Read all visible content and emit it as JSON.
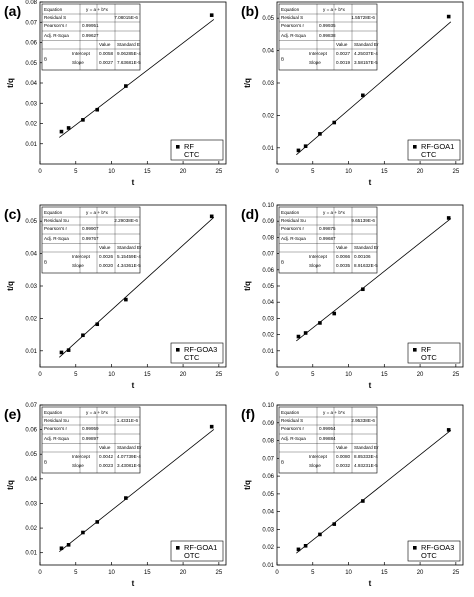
{
  "chart_data": [
    {
      "panel_label": "(a)",
      "type": "scatter",
      "xlabel": "t",
      "ylabel": "t/q",
      "xlim": [
        0,
        26
      ],
      "ylim": [
        0,
        0.08
      ],
      "xticks": [
        0,
        5,
        10,
        15,
        20,
        25
      ],
      "yticks": [
        0.01,
        0.02,
        0.03,
        0.04,
        0.05,
        0.06,
        0.07,
        0.08
      ],
      "ytick_labels": [
        "0.01",
        "0.02",
        "0.03",
        "0.04",
        "0.05",
        "0.06",
        "0.07",
        "0.08"
      ],
      "x": [
        3,
        4,
        6,
        8,
        12,
        24
      ],
      "y": [
        0.016,
        0.0178,
        0.0218,
        0.0268,
        0.0385,
        0.0735
      ],
      "fit": {
        "intercept": 0.0058,
        "slope": 0.0027
      },
      "legend": {
        "name": "RF",
        "sub": "CTC",
        "position": "bottom-right"
      },
      "stats": {
        "equation_label": "Equation",
        "equation": "y = a + b*x",
        "residual_label": "Residual S",
        "residual": "7.08015E-6",
        "pearson_label": "Pearson's r",
        "pearson": "0.99951",
        "adjr_label": "Adj. R-Squa",
        "adjr": "0.99627",
        "value_header": "Value",
        "error_header": "Standard E",
        "b_label": "B",
        "intercept_label": "Intercept",
        "intercept_value": "0.0058",
        "intercept_error": "9.06285E-4",
        "slope_label": "Slope",
        "slope_value": "0.0027",
        "slope_error": "7.63681E-5"
      }
    },
    {
      "panel_label": "(b)",
      "type": "scatter",
      "xlabel": "t",
      "ylabel": "t/q",
      "xlim": [
        0,
        26
      ],
      "ylim": [
        0.005,
        0.055
      ],
      "xticks": [
        0,
        5,
        10,
        15,
        20,
        25
      ],
      "yticks": [
        0.01,
        0.02,
        0.03,
        0.04,
        0.05
      ],
      "ytick_labels": [
        "0.01",
        "0.02",
        "0.03",
        "0.04",
        "0.05"
      ],
      "x": [
        3,
        4,
        6,
        8,
        12,
        24
      ],
      "y": [
        0.0092,
        0.0105,
        0.0143,
        0.0178,
        0.0262,
        0.0505
      ],
      "fit": {
        "intercept": 0.0027,
        "slope": 0.0019
      },
      "legend": {
        "name": "RF-GOA1",
        "sub": "CTC",
        "position": "bottom-right"
      },
      "stats": {
        "equation_label": "Equation",
        "equation": "y = a + b*x",
        "residual_label": "Residual S",
        "residual": "1.55728E-6",
        "pearson_label": "Pearson's r",
        "pearson": "0.99935",
        "adjr_label": "Adj. R-Squa",
        "adjr": "0.99838",
        "value_header": "Value",
        "error_header": "Standard Er",
        "b_label": "B",
        "intercept_label": "Intercept",
        "intercept_value": "0.0027",
        "intercept_error": "4.25037E-4",
        "slope_label": "Slope",
        "slope_value": "0.0019",
        "slope_error": "3.58157E-5"
      }
    },
    {
      "panel_label": "(c)",
      "type": "scatter",
      "xlabel": "t",
      "ylabel": "t/q",
      "xlim": [
        0,
        26
      ],
      "ylim": [
        0.005,
        0.055
      ],
      "xticks": [
        0,
        5,
        10,
        15,
        20,
        25
      ],
      "yticks": [
        0.01,
        0.02,
        0.03,
        0.04,
        0.05
      ],
      "ytick_labels": [
        "0.01",
        "0.02",
        "0.03",
        "0.04",
        "0.05"
      ],
      "x": [
        3,
        4,
        6,
        8,
        12,
        24
      ],
      "y": [
        0.0095,
        0.0102,
        0.0148,
        0.0182,
        0.0258,
        0.0515
      ],
      "fit": {
        "intercept": 0.0026,
        "slope": 0.002
      },
      "legend": {
        "name": "RF-GOA3",
        "sub": "CTC",
        "position": "bottom-right"
      },
      "stats": {
        "equation_label": "Equation",
        "equation": "y = a + b*x",
        "residual_label": "Residual Su",
        "residual": "2.29038E-6",
        "pearson_label": "Pearson's r",
        "pearson": "0.99907",
        "adjr_label": "Adj. R-Squa",
        "adjr": "0.99767",
        "value_header": "Value",
        "error_header": "Standard Er",
        "b_label": "B",
        "intercept_label": "Intercept",
        "intercept_value": "0.0026",
        "intercept_error": "5.15459E-4",
        "slope_label": "Slope",
        "slope_value": "0.0020",
        "slope_error": "4.34361E-5"
      }
    },
    {
      "panel_label": "(d)",
      "type": "scatter",
      "xlabel": "t",
      "ylabel": "t/q",
      "xlim": [
        0,
        26
      ],
      "ylim": [
        0,
        0.1
      ],
      "xticks": [
        0,
        5,
        10,
        15,
        20,
        25
      ],
      "yticks": [
        0.01,
        0.02,
        0.03,
        0.04,
        0.05,
        0.06,
        0.07,
        0.08,
        0.09,
        0.1
      ],
      "ytick_labels": [
        "0.01",
        "0.02",
        "0.03",
        "0.04",
        "0.05",
        "0.06",
        "0.07",
        "0.08",
        "0.09",
        "0.10"
      ],
      "x": [
        3,
        4,
        6,
        8,
        12,
        24
      ],
      "y": [
        0.0188,
        0.021,
        0.0272,
        0.033,
        0.048,
        0.092
      ],
      "fit": {
        "intercept": 0.0066,
        "slope": 0.0035
      },
      "legend": {
        "name": "RF",
        "sub": "OTC",
        "position": "bottom-right"
      },
      "stats": {
        "equation_label": "Equation",
        "equation": "y = a + b*x",
        "residual_label": "Residual Su",
        "residual": "9.65139E-6",
        "pearson_label": "Pearson's r",
        "pearson": "0.99875",
        "adjr_label": "Adj. R-Squa",
        "adjr": "0.99687",
        "value_header": "Value",
        "error_header": "Standard Er",
        "b_label": "B",
        "intercept_label": "Intercept",
        "intercept_value": "0.0066",
        "intercept_error": "0.00106",
        "slope_label": "Slope",
        "slope_value": "0.0035",
        "slope_error": "8.91632E-5"
      }
    },
    {
      "panel_label": "(e)",
      "type": "scatter",
      "xlabel": "t",
      "ylabel": "t/q",
      "xlim": [
        0,
        26
      ],
      "ylim": [
        0.005,
        0.07
      ],
      "xticks": [
        0,
        5,
        10,
        15,
        20,
        25
      ],
      "yticks": [
        0.01,
        0.02,
        0.03,
        0.04,
        0.05,
        0.06,
        0.07
      ],
      "ytick_labels": [
        "0.01",
        "0.02",
        "0.03",
        "0.04",
        "0.05",
        "0.06",
        "0.07"
      ],
      "x": [
        3,
        4,
        6,
        8,
        12,
        24
      ],
      "y": [
        0.0118,
        0.0132,
        0.0182,
        0.0225,
        0.0322,
        0.0612
      ],
      "fit": {
        "intercept": 0.0042,
        "slope": 0.0023
      },
      "legend": {
        "name": "RF-GOA1",
        "sub": "OTC",
        "position": "bottom-right"
      },
      "stats": {
        "equation_label": "Equation",
        "equation": "y = a + b*x",
        "residual_label": "Residual Su",
        "residual": "1.4331E-6",
        "pearson_label": "Pearson's r",
        "pearson": "0.99959",
        "adjr_label": "Adj. R-Squa",
        "adjr": "0.99897",
        "value_header": "Value",
        "error_header": "Standard Er",
        "b_label": "B",
        "intercept_label": "Intercept",
        "intercept_value": "0.0042",
        "intercept_error": "4.07739E-4",
        "slope_label": "Slope",
        "slope_value": "0.0023",
        "slope_error": "3.43081E-5"
      }
    },
    {
      "panel_label": "(f)",
      "type": "scatter",
      "xlabel": "t",
      "ylabel": "t/q",
      "xlim": [
        0,
        26
      ],
      "ylim": [
        0.01,
        0.1
      ],
      "xticks": [
        0,
        5,
        10,
        15,
        20,
        25
      ],
      "yticks": [
        0.01,
        0.02,
        0.03,
        0.04,
        0.05,
        0.06,
        0.07,
        0.08,
        0.09,
        0.1
      ],
      "ytick_labels": [
        "0.01",
        "0.02",
        "0.03",
        "0.04",
        "0.05",
        "0.06",
        "0.07",
        "0.08",
        "0.09",
        "0.10"
      ],
      "x": [
        3,
        4,
        6,
        8,
        12,
        24
      ],
      "y": [
        0.0188,
        0.0208,
        0.0272,
        0.033,
        0.046,
        0.086
      ],
      "fit": {
        "intercept": 0.008,
        "slope": 0.0032
      },
      "legend": {
        "name": "RF-GOA3",
        "sub": "OTC",
        "position": "bottom-right"
      },
      "stats": {
        "equation_label": "Equation",
        "equation": "y = a + b*x",
        "residual_label": "Residual S",
        "residual": "2.95338E-6",
        "pearson_label": "Pearson's r",
        "pearson": "0.99954",
        "adjr_label": "Adj. R-Squa",
        "adjr": "0.99884",
        "value_header": "Value",
        "error_header": "Standard Er",
        "b_label": "B",
        "intercept_label": "Intercept",
        "intercept_value": "0.0080",
        "intercept_error": "8.85333E-4",
        "slope_label": "Slope",
        "slope_value": "0.0032",
        "slope_error": "4.93231E-5"
      }
    }
  ]
}
